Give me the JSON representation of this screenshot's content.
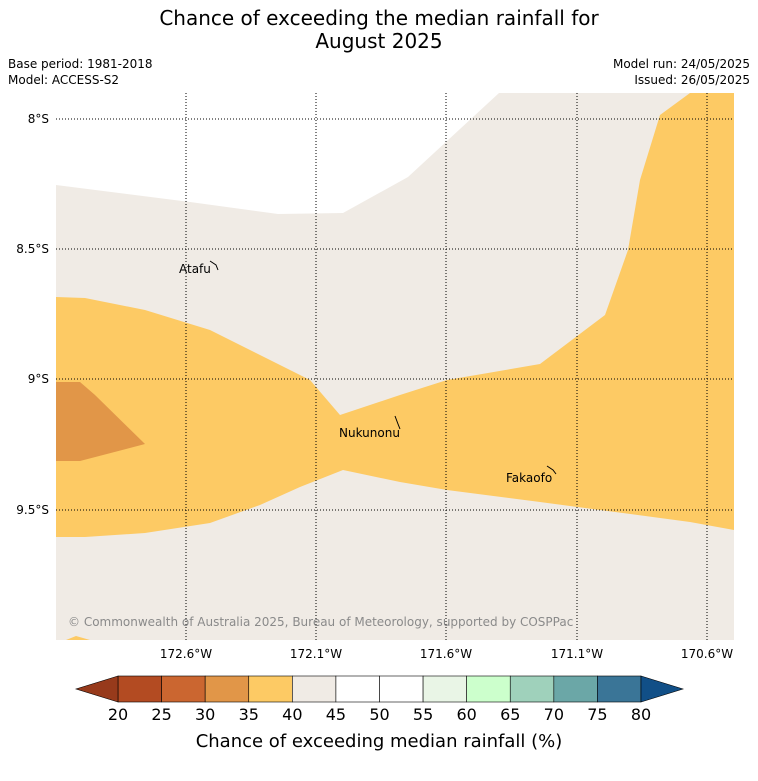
{
  "title": {
    "line1": "Chance of exceeding the median rainfall for",
    "line2": "August 2025"
  },
  "meta": {
    "base_period": "Base period: 1981-2018",
    "model": "Model: ACCESS-S2",
    "model_run": "Model run: 24/05/2025",
    "issued": "Issued: 26/05/2025"
  },
  "map": {
    "lat_labels": [
      "8°S",
      "8.5°S",
      "9°S",
      "9.5°S"
    ],
    "lon_labels": [
      "172.6°W",
      "172.1°W",
      "171.6°W",
      "171.1°W",
      "170.6°W"
    ],
    "places": [
      "Atafu",
      "Nukunonu",
      "Fakaofo"
    ],
    "copyright": "© Commonwealth of Australia 2025, Bureau of Meteorology, supported by COSPPac",
    "region_colors": {
      "band_40_45": "#f0ebe5",
      "band_35_40": "#fdca64",
      "band_30_35": "#e19648"
    }
  },
  "colorbar": {
    "ticks": [
      "20",
      "25",
      "30",
      "35",
      "40",
      "45",
      "50",
      "55",
      "60",
      "65",
      "70",
      "75",
      "80"
    ],
    "colors": [
      "#b34b22",
      "#cb6630",
      "#e19648",
      "#fdca64",
      "#f0ebe5",
      "#ffffff",
      "#ffffff",
      "#e9f5e6",
      "#ccffcc",
      "#9fd1bb",
      "#6ba7a7",
      "#3a7597"
    ],
    "under_color": "#973a1b",
    "over_color": "#114f87",
    "label": "Chance of exceeding median rainfall (%)"
  }
}
